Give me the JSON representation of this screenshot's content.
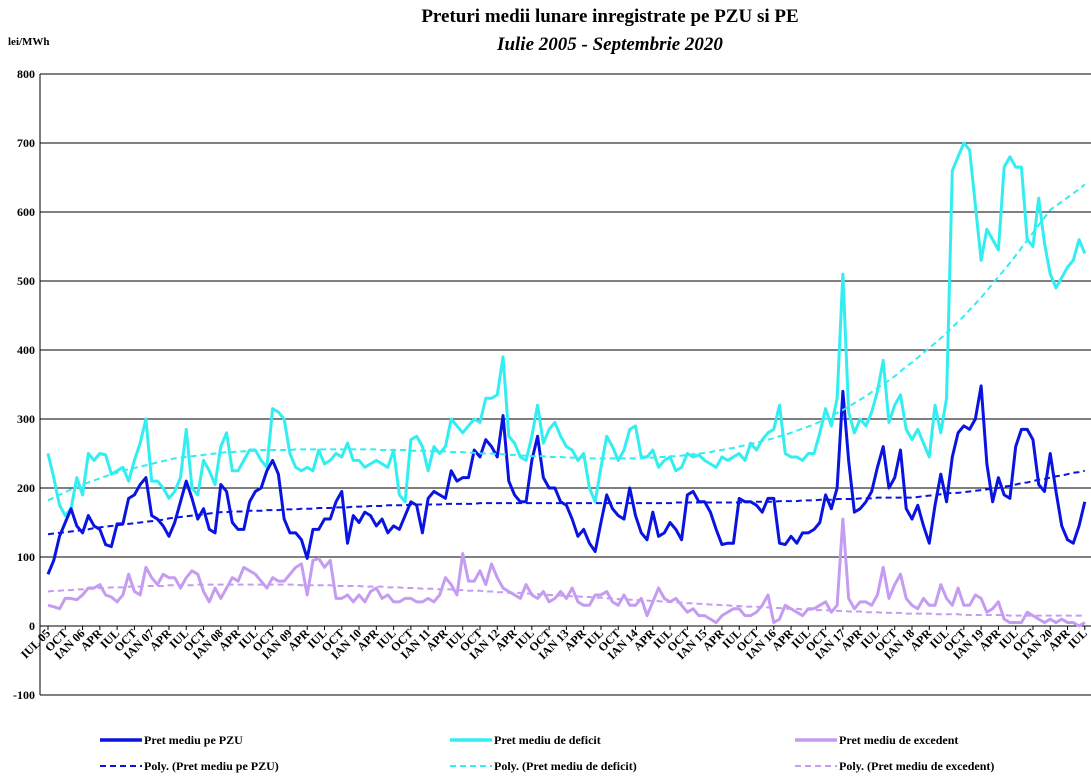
{
  "chart_data": {
    "type": "line",
    "title": "Preturi medii lunare inregistrate pe PZU si PE",
    "subtitle": "Iulie 2005 - Septembrie 2020",
    "y_label": "lei/MWh",
    "ylim": [
      -100,
      800
    ],
    "yticks": [
      -100,
      0,
      100,
      200,
      300,
      400,
      500,
      600,
      700,
      800
    ],
    "grid": true,
    "categories": [
      "IUL 05",
      null,
      null,
      "OCT",
      null,
      null,
      "IAN 06",
      null,
      null,
      "APR",
      null,
      null,
      "IUL",
      null,
      null,
      "OCT",
      null,
      null,
      "IAN 07",
      null,
      null,
      "APR",
      null,
      null,
      "IUL",
      null,
      null,
      "OCT",
      null,
      null,
      "IAN 08",
      null,
      null,
      "APR",
      null,
      null,
      "IUL",
      null,
      null,
      "OCT",
      null,
      null,
      "IAN 09",
      null,
      null,
      "APR",
      null,
      null,
      "IUL",
      null,
      null,
      "OCT",
      null,
      null,
      "IAN 10",
      null,
      null,
      "APR",
      null,
      null,
      "IUL",
      null,
      null,
      "OCT",
      null,
      null,
      "IAN 11",
      null,
      null,
      "APR",
      null,
      null,
      "IUL",
      null,
      null,
      "OCT",
      null,
      null,
      "IAN 12",
      null,
      null,
      "APR",
      null,
      null,
      "IUL",
      null,
      null,
      "OCT",
      null,
      null,
      "IAN 13",
      null,
      null,
      "APR",
      null,
      null,
      "IUL",
      null,
      null,
      "OCT",
      null,
      null,
      "IAN 14",
      null,
      null,
      "APR",
      null,
      null,
      "IUL",
      null,
      null,
      "OCT",
      null,
      null,
      "IAN 15",
      null,
      null,
      "APR",
      null,
      null,
      "IUL",
      null,
      null,
      "OCT",
      null,
      null,
      "IAN 16",
      null,
      null,
      "APR",
      null,
      null,
      "IUL",
      null,
      null,
      "OCT",
      null,
      null,
      "IAN 17",
      null,
      null,
      "APR",
      null,
      null,
      "IUL",
      null,
      null,
      "OCT",
      null,
      null,
      "IAN 18",
      null,
      null,
      "APR",
      null,
      null,
      "IUL",
      null,
      null,
      "OCT",
      null,
      null,
      "IAN 19",
      null,
      null,
      "APR",
      null,
      null,
      "IUL",
      null,
      null,
      "OCT",
      null,
      null,
      "IAN 20",
      null,
      null,
      "APR",
      null,
      null,
      "IUL"
    ],
    "series": [
      {
        "name": "Pret mediu pe PZU",
        "color": "#0a14e0",
        "dashed": false,
        "values": [
          75,
          95,
          130,
          150,
          170,
          145,
          135,
          160,
          145,
          140,
          118,
          115,
          148,
          148,
          185,
          190,
          205,
          215,
          160,
          155,
          145,
          130,
          150,
          180,
          210,
          185,
          155,
          170,
          140,
          135,
          205,
          195,
          150,
          140,
          140,
          180,
          195,
          200,
          225,
          240,
          220,
          155,
          135,
          135,
          125,
          98,
          140,
          140,
          155,
          155,
          180,
          195,
          120,
          160,
          150,
          165,
          160,
          145,
          155,
          135,
          145,
          140,
          160,
          180,
          175,
          135,
          185,
          195,
          190,
          185,
          225,
          210,
          215,
          215,
          255,
          245,
          270,
          260,
          245,
          305,
          210,
          190,
          180,
          180,
          240,
          275,
          215,
          200,
          200,
          180,
          175,
          155,
          130,
          140,
          120,
          108,
          150,
          190,
          170,
          160,
          155,
          200,
          160,
          135,
          125,
          165,
          130,
          135,
          150,
          140,
          125,
          190,
          195,
          180,
          180,
          165,
          140,
          118,
          120,
          120,
          185,
          180,
          180,
          175,
          165,
          185,
          185,
          120,
          118,
          130,
          120,
          135,
          135,
          140,
          150,
          190,
          170,
          200,
          340,
          240,
          165,
          170,
          180,
          195,
          230,
          260,
          200,
          215,
          255,
          170,
          155,
          175,
          145,
          120,
          175,
          220,
          180,
          245,
          280,
          290,
          285,
          300,
          348,
          235,
          180,
          215,
          190,
          185,
          260,
          285,
          285,
          270,
          205,
          195,
          250,
          195,
          145,
          125,
          120,
          145,
          180
        ]
      },
      {
        "name": "Pret mediu de deficit",
        "color": "#33eef0",
        "dashed": false,
        "values": [
          250,
          215,
          175,
          160,
          170,
          215,
          190,
          250,
          240,
          250,
          248,
          220,
          225,
          230,
          210,
          240,
          265,
          300,
          210,
          210,
          200,
          185,
          195,
          215,
          285,
          200,
          190,
          240,
          225,
          205,
          260,
          280,
          225,
          225,
          240,
          255,
          255,
          240,
          230,
          315,
          310,
          300,
          250,
          230,
          225,
          230,
          225,
          255,
          235,
          240,
          250,
          245,
          265,
          240,
          240,
          230,
          235,
          240,
          235,
          230,
          255,
          190,
          180,
          270,
          275,
          260,
          225,
          260,
          250,
          260,
          300,
          290,
          280,
          290,
          300,
          295,
          330,
          330,
          335,
          390,
          275,
          265,
          245,
          240,
          275,
          320,
          265,
          285,
          295,
          275,
          260,
          255,
          240,
          250,
          200,
          180,
          230,
          275,
          260,
          240,
          255,
          285,
          290,
          245,
          245,
          255,
          230,
          240,
          245,
          225,
          230,
          250,
          245,
          248,
          240,
          235,
          230,
          245,
          240,
          245,
          250,
          240,
          265,
          255,
          270,
          280,
          285,
          320,
          250,
          245,
          245,
          240,
          250,
          250,
          280,
          315,
          290,
          330,
          510,
          310,
          280,
          300,
          290,
          310,
          340,
          385,
          295,
          320,
          335,
          285,
          270,
          285,
          265,
          245,
          320,
          280,
          330,
          660,
          680,
          700,
          690,
          610,
          530,
          575,
          560,
          545,
          665,
          680,
          665,
          665,
          560,
          550,
          620,
          555,
          510,
          490,
          505,
          520,
          530,
          560,
          540
        ]
      },
      {
        "name": "Pret mediu de excedent",
        "color": "#c49cf0",
        "dashed": false,
        "values": [
          30,
          28,
          25,
          40,
          40,
          38,
          45,
          55,
          55,
          60,
          45,
          42,
          35,
          45,
          75,
          50,
          45,
          85,
          70,
          60,
          75,
          70,
          70,
          55,
          70,
          80,
          75,
          50,
          35,
          55,
          40,
          55,
          70,
          65,
          85,
          80,
          75,
          65,
          55,
          70,
          65,
          65,
          75,
          85,
          90,
          45,
          95,
          98,
          85,
          95,
          40,
          40,
          45,
          35,
          45,
          35,
          50,
          55,
          40,
          45,
          35,
          35,
          40,
          40,
          35,
          35,
          40,
          35,
          45,
          70,
          60,
          45,
          105,
          65,
          65,
          80,
          60,
          90,
          70,
          55,
          50,
          45,
          40,
          60,
          45,
          40,
          50,
          35,
          40,
          50,
          40,
          55,
          35,
          30,
          30,
          45,
          45,
          50,
          35,
          30,
          45,
          30,
          30,
          40,
          15,
          35,
          55,
          40,
          35,
          40,
          30,
          20,
          25,
          15,
          15,
          10,
          5,
          15,
          20,
          25,
          25,
          15,
          15,
          20,
          30,
          45,
          5,
          10,
          30,
          25,
          20,
          15,
          25,
          25,
          30,
          35,
          20,
          30,
          155,
          40,
          25,
          35,
          35,
          30,
          45,
          85,
          40,
          60,
          75,
          40,
          30,
          25,
          40,
          30,
          30,
          60,
          40,
          30,
          55,
          30,
          30,
          45,
          40,
          20,
          25,
          35,
          10,
          5,
          5,
          5,
          20,
          15,
          10,
          5,
          10,
          5,
          10,
          5,
          5,
          0,
          5
        ]
      },
      {
        "name": "Poly. (Pret mediu pe PZU)",
        "color": "#0a14e0",
        "dashed": true,
        "values": [
          133,
          134,
          135,
          136,
          137,
          138,
          139,
          140,
          142,
          143,
          144,
          145,
          146,
          147,
          148,
          149,
          150,
          151,
          152,
          153,
          154,
          156,
          157,
          158,
          159,
          160,
          161,
          162,
          163,
          164,
          165,
          165,
          166,
          166,
          166,
          167,
          167,
          167,
          168,
          168,
          168,
          169,
          169,
          169,
          170,
          170,
          170,
          171,
          171,
          171,
          172,
          172,
          172,
          173,
          173,
          173,
          174,
          174,
          174,
          175,
          175,
          175,
          175,
          176,
          176,
          176,
          176,
          176,
          176,
          177,
          177,
          177,
          177,
          177,
          177,
          178,
          178,
          178,
          178,
          178,
          178,
          178,
          178,
          178,
          178,
          178,
          178,
          178,
          178,
          178,
          178,
          178,
          178,
          178,
          178,
          178,
          178,
          178,
          178,
          178,
          178,
          178,
          178,
          178,
          178,
          178,
          178,
          178,
          178,
          179,
          179,
          179,
          179,
          179,
          179,
          179,
          179,
          179,
          179,
          179,
          179,
          179,
          180,
          180,
          180,
          180,
          180,
          181,
          181,
          181,
          181,
          182,
          182,
          182,
          183,
          183,
          183,
          184,
          184,
          184,
          184,
          185,
          185,
          185,
          186,
          186,
          186,
          186,
          186,
          186,
          186,
          187,
          188,
          189,
          190,
          191,
          192,
          193,
          193,
          194,
          195,
          196,
          197,
          198,
          199,
          200,
          202,
          203,
          205,
          207,
          208,
          210,
          212,
          213,
          215,
          217,
          218,
          220,
          222,
          223,
          225
        ]
      },
      {
        "name": "Poly. (Pret mediu de deficit)",
        "color": "#33eef0",
        "dashed": true,
        "values": [
          182,
          186,
          190,
          194,
          198,
          201,
          205,
          208,
          211,
          214,
          217,
          220,
          222,
          225,
          227,
          229,
          231,
          233,
          235,
          237,
          239,
          241,
          243,
          244,
          245,
          246,
          247,
          248,
          249,
          250,
          251,
          252,
          252,
          253,
          253,
          254,
          254,
          255,
          255,
          255,
          255,
          255,
          255,
          256,
          256,
          256,
          256,
          256,
          256,
          256,
          256,
          256,
          256,
          256,
          256,
          256,
          256,
          256,
          255,
          255,
          255,
          255,
          255,
          254,
          254,
          254,
          254,
          253,
          253,
          253,
          252,
          252,
          252,
          251,
          251,
          250,
          250,
          250,
          249,
          249,
          248,
          248,
          247,
          247,
          246,
          246,
          246,
          245,
          245,
          245,
          244,
          244,
          244,
          244,
          243,
          243,
          243,
          243,
          243,
          243,
          243,
          243,
          243,
          243,
          244,
          244,
          245,
          245,
          246,
          246,
          247,
          248,
          249,
          250,
          251,
          252,
          254,
          255,
          257,
          258,
          260,
          262,
          264,
          266,
          268,
          270,
          272,
          275,
          277,
          280,
          283,
          286,
          289,
          292,
          296,
          300,
          304,
          309,
          313,
          318,
          323,
          328,
          333,
          339,
          345,
          350,
          356,
          362,
          369,
          376,
          382,
          389,
          396,
          403,
          410,
          417,
          425,
          433,
          441,
          449,
          458,
          467,
          476,
          486,
          496,
          506,
          516,
          526,
          537,
          548,
          559,
          570,
          581,
          592,
          603,
          609,
          615,
          621,
          627,
          633,
          640
        ]
      },
      {
        "name": "Poly. (Pret mediu de excedent)",
        "color": "#c49cf0",
        "dashed": true,
        "values": [
          50,
          51,
          51,
          52,
          52,
          53,
          53,
          54,
          54,
          55,
          55,
          56,
          56,
          56,
          57,
          57,
          57,
          58,
          58,
          58,
          58,
          59,
          59,
          59,
          59,
          59,
          60,
          60,
          60,
          60,
          60,
          60,
          60,
          60,
          60,
          60,
          60,
          60,
          60,
          60,
          60,
          60,
          60,
          60,
          59,
          59,
          59,
          59,
          59,
          59,
          58,
          58,
          58,
          58,
          58,
          57,
          57,
          57,
          57,
          56,
          56,
          56,
          55,
          55,
          55,
          54,
          54,
          54,
          53,
          53,
          53,
          52,
          52,
          51,
          51,
          51,
          50,
          50,
          49,
          49,
          48,
          48,
          48,
          47,
          47,
          46,
          46,
          45,
          45,
          44,
          44,
          43,
          43,
          42,
          42,
          41,
          41,
          40,
          40,
          39,
          39,
          38,
          38,
          37,
          37,
          36,
          36,
          35,
          35,
          34,
          34,
          33,
          33,
          32,
          32,
          31,
          31,
          30,
          30,
          29,
          29,
          28,
          28,
          28,
          27,
          27,
          26,
          26,
          25,
          25,
          25,
          24,
          24,
          23,
          23,
          23,
          22,
          22,
          22,
          21,
          21,
          21,
          20,
          20,
          20,
          19,
          19,
          19,
          19,
          18,
          18,
          18,
          18,
          18,
          17,
          17,
          17,
          17,
          17,
          16,
          16,
          16,
          16,
          16,
          16,
          16,
          16,
          15,
          15,
          15,
          15,
          15,
          15,
          15,
          15,
          15,
          15,
          15,
          15,
          15,
          15
        ]
      }
    ]
  }
}
